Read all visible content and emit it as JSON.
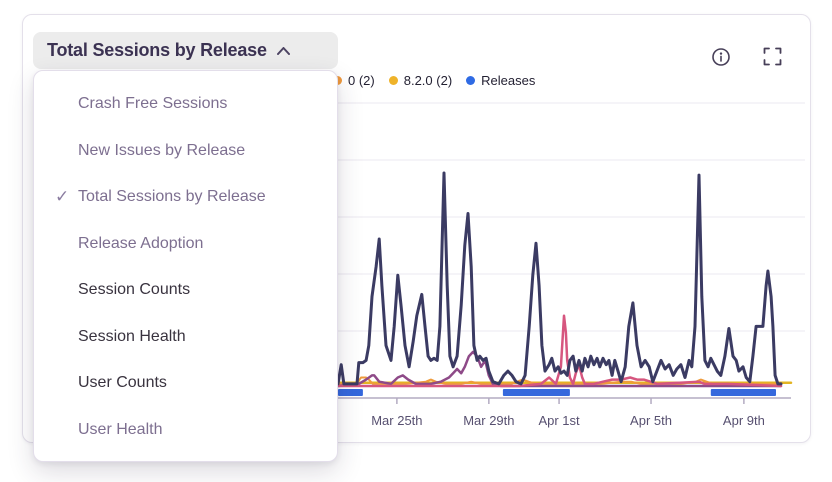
{
  "header": {
    "title": "Total Sessions by Release",
    "chevron_icon": "chevron-up",
    "info_icon": "info-circle",
    "expand_icon": "fullscreen-expand"
  },
  "dropdown": {
    "checkmark": "✓",
    "items": [
      {
        "label": "Crash Free Sessions",
        "selected": false,
        "muted": true
      },
      {
        "label": "New Issues by Release",
        "selected": false,
        "muted": true
      },
      {
        "label": "Total Sessions by Release",
        "selected": true,
        "muted": true
      },
      {
        "label": "Release Adoption",
        "selected": false,
        "muted": true
      },
      {
        "label": "Session Counts",
        "selected": false,
        "muted": false
      },
      {
        "label": "Session Health",
        "selected": false,
        "muted": false
      },
      {
        "label": "User Counts",
        "selected": false,
        "muted": false
      },
      {
        "label": "User Health",
        "selected": false,
        "muted": true
      }
    ]
  },
  "legend": {
    "items": [
      {
        "label": "0 (2)",
        "color": "#f09a3c",
        "note": "left part hidden behind open dropdown"
      },
      {
        "label": "8.2.0 (2)",
        "color": "#efb32a"
      },
      {
        "label": "Releases",
        "color": "#2f6be4"
      }
    ]
  },
  "colors": {
    "card_border": "#e4e0ea",
    "header_pill_bg": "#ececec",
    "header_text": "#3b3252",
    "axis_line": "#b3abc2",
    "axis_label": "#575070",
    "gridline": "#f2f0f5",
    "release_bar_blue": "#3568dd"
  },
  "chart_data": {
    "type": "line",
    "title": "Total Sessions by Release",
    "grid": "horizontal",
    "legend_position": "top",
    "x_axis": {
      "tick_labels": [
        "Mar 25th",
        "Mar 29th",
        "Apr 1st",
        "Apr 5th",
        "Apr 9th"
      ],
      "tick_positions": [
        0.13,
        0.333,
        0.488,
        0.691,
        0.896
      ]
    },
    "y_axis": {
      "labels_visible": false,
      "note": "y tick labels hidden behind open dropdown; values are relative 0-100 of tallest visible peak"
    },
    "release_markers": {
      "legend_label": "Releases",
      "color": "#3568dd",
      "x_ranges": [
        [
          0.0,
          0.055
        ],
        [
          0.364,
          0.512
        ],
        [
          0.823,
          0.967
        ]
      ]
    },
    "series": [
      {
        "name": "gold-flat-series",
        "color": "#e3b422",
        "width": 2.5,
        "points": [
          [
            0.0,
            1.5
          ],
          [
            1.0,
            1.5
          ]
        ]
      },
      {
        "name": "orange-series",
        "color": "#ef9b3c",
        "width": 2,
        "points": [
          [
            0.0,
            1
          ],
          [
            0.04,
            1
          ],
          [
            0.051,
            4
          ],
          [
            0.057,
            4
          ],
          [
            0.062,
            4
          ],
          [
            0.068,
            3
          ],
          [
            0.077,
            1
          ],
          [
            0.139,
            1
          ],
          [
            0.15,
            1
          ],
          [
            0.194,
            2
          ],
          [
            0.205,
            3
          ],
          [
            0.216,
            2
          ],
          [
            0.238,
            1
          ],
          [
            0.272,
            1
          ],
          [
            0.294,
            2
          ],
          [
            0.316,
            1
          ],
          [
            0.338,
            1
          ],
          [
            0.382,
            1
          ],
          [
            0.395,
            2
          ],
          [
            0.408,
            3
          ],
          [
            0.421,
            2
          ],
          [
            0.437,
            1
          ],
          [
            0.492,
            1
          ],
          [
            0.536,
            1
          ],
          [
            0.58,
            1
          ],
          [
            0.625,
            2
          ],
          [
            0.647,
            2
          ],
          [
            0.669,
            1
          ],
          [
            0.713,
            1
          ],
          [
            0.757,
            1
          ],
          [
            0.79,
            2
          ],
          [
            0.801,
            3
          ],
          [
            0.814,
            2
          ],
          [
            0.828,
            1
          ],
          [
            0.872,
            1
          ],
          [
            0.916,
            1
          ],
          [
            0.938,
            1
          ],
          [
            0.967,
            1
          ],
          [
            0.978,
            1
          ]
        ]
      },
      {
        "name": "purple-series",
        "color": "#8e4a88",
        "width": 2.5,
        "points": [
          [
            0.0,
            0
          ],
          [
            0.046,
            1
          ],
          [
            0.062,
            3
          ],
          [
            0.075,
            5
          ],
          [
            0.08,
            5
          ],
          [
            0.091,
            2
          ],
          [
            0.117,
            1
          ],
          [
            0.132,
            4
          ],
          [
            0.143,
            5
          ],
          [
            0.155,
            3
          ],
          [
            0.172,
            1
          ],
          [
            0.205,
            1
          ],
          [
            0.227,
            2
          ],
          [
            0.245,
            4
          ],
          [
            0.254,
            6
          ],
          [
            0.263,
            8
          ],
          [
            0.272,
            6
          ],
          [
            0.28,
            9
          ],
          [
            0.289,
            14
          ],
          [
            0.298,
            16
          ],
          [
            0.307,
            14
          ],
          [
            0.316,
            9
          ],
          [
            0.325,
            12
          ],
          [
            0.333,
            5
          ],
          [
            0.342,
            1
          ],
          [
            0.36,
            0
          ],
          [
            0.978,
            0
          ]
        ]
      },
      {
        "name": "pink-series",
        "color": "#d6567f",
        "width": 2.5,
        "points": [
          [
            0.0,
            0
          ],
          [
            0.4,
            0
          ],
          [
            0.448,
            1
          ],
          [
            0.466,
            4
          ],
          [
            0.481,
            1
          ],
          [
            0.492,
            9
          ],
          [
            0.499,
            33
          ],
          [
            0.503,
            25
          ],
          [
            0.506,
            12
          ],
          [
            0.512,
            4
          ],
          [
            0.519,
            1
          ],
          [
            0.525,
            6
          ],
          [
            0.532,
            10
          ],
          [
            0.539,
            4
          ],
          [
            0.545,
            1
          ],
          [
            0.565,
            1
          ],
          [
            0.585,
            2
          ],
          [
            0.605,
            3
          ],
          [
            0.625,
            3
          ],
          [
            0.645,
            4
          ],
          [
            0.66,
            3
          ],
          [
            0.675,
            3
          ],
          [
            0.69,
            2
          ],
          [
            0.705,
            1
          ],
          [
            0.797,
            2
          ],
          [
            0.81,
            1
          ],
          [
            0.86,
            1
          ],
          [
            0.978,
            0
          ]
        ]
      },
      {
        "name": "navy-series",
        "color": "#3b3b63",
        "width": 3,
        "points": [
          [
            0.0,
            1
          ],
          [
            0.007,
            10
          ],
          [
            0.013,
            1
          ],
          [
            0.042,
            1
          ],
          [
            0.046,
            11
          ],
          [
            0.055,
            11
          ],
          [
            0.062,
            12
          ],
          [
            0.068,
            19
          ],
          [
            0.075,
            42
          ],
          [
            0.084,
            56
          ],
          [
            0.091,
            69
          ],
          [
            0.097,
            47
          ],
          [
            0.106,
            19
          ],
          [
            0.117,
            12
          ],
          [
            0.124,
            28
          ],
          [
            0.132,
            52
          ],
          [
            0.139,
            38
          ],
          [
            0.148,
            19
          ],
          [
            0.157,
            9
          ],
          [
            0.166,
            21
          ],
          [
            0.174,
            33
          ],
          [
            0.185,
            43
          ],
          [
            0.192,
            28
          ],
          [
            0.199,
            14
          ],
          [
            0.205,
            12
          ],
          [
            0.212,
            13
          ],
          [
            0.219,
            12
          ],
          [
            0.225,
            28
          ],
          [
            0.234,
            100
          ],
          [
            0.241,
            47
          ],
          [
            0.247,
            14
          ],
          [
            0.254,
            9
          ],
          [
            0.263,
            14
          ],
          [
            0.272,
            38
          ],
          [
            0.28,
            66
          ],
          [
            0.287,
            81
          ],
          [
            0.294,
            56
          ],
          [
            0.3,
            19
          ],
          [
            0.307,
            12
          ],
          [
            0.313,
            14
          ],
          [
            0.32,
            12
          ],
          [
            0.327,
            13
          ],
          [
            0.333,
            7
          ],
          [
            0.342,
            2
          ],
          [
            0.355,
            1
          ],
          [
            0.366,
            5
          ],
          [
            0.375,
            7
          ],
          [
            0.384,
            5
          ],
          [
            0.393,
            2
          ],
          [
            0.404,
            1
          ],
          [
            0.413,
            5
          ],
          [
            0.422,
            28
          ],
          [
            0.43,
            52
          ],
          [
            0.437,
            67
          ],
          [
            0.444,
            47
          ],
          [
            0.45,
            19
          ],
          [
            0.457,
            7
          ],
          [
            0.466,
            10
          ],
          [
            0.472,
            13
          ],
          [
            0.479,
            7
          ],
          [
            0.486,
            9
          ],
          [
            0.492,
            6
          ],
          [
            0.499,
            7
          ],
          [
            0.506,
            5
          ],
          [
            0.512,
            12
          ],
          [
            0.519,
            14
          ],
          [
            0.525,
            7
          ],
          [
            0.532,
            12
          ],
          [
            0.539,
            7
          ],
          [
            0.545,
            13
          ],
          [
            0.552,
            9
          ],
          [
            0.558,
            14
          ],
          [
            0.565,
            10
          ],
          [
            0.572,
            13
          ],
          [
            0.578,
            9
          ],
          [
            0.585,
            13
          ],
          [
            0.592,
            10
          ],
          [
            0.598,
            12
          ],
          [
            0.605,
            5
          ],
          [
            0.611,
            12
          ],
          [
            0.618,
            7
          ],
          [
            0.625,
            2
          ],
          [
            0.634,
            9
          ],
          [
            0.642,
            28
          ],
          [
            0.651,
            39
          ],
          [
            0.66,
            19
          ],
          [
            0.669,
            9
          ],
          [
            0.678,
            12
          ],
          [
            0.687,
            9
          ],
          [
            0.695,
            2
          ],
          [
            0.704,
            7
          ],
          [
            0.713,
            12
          ],
          [
            0.722,
            8
          ],
          [
            0.731,
            10
          ],
          [
            0.74,
            5
          ],
          [
            0.748,
            8
          ],
          [
            0.757,
            10
          ],
          [
            0.766,
            4
          ],
          [
            0.775,
            12
          ],
          [
            0.781,
            9
          ],
          [
            0.788,
            28
          ],
          [
            0.797,
            99
          ],
          [
            0.803,
            42
          ],
          [
            0.81,
            12
          ],
          [
            0.817,
            9
          ],
          [
            0.823,
            13
          ],
          [
            0.83,
            10
          ],
          [
            0.837,
            7
          ],
          [
            0.845,
            5
          ],
          [
            0.854,
            14
          ],
          [
            0.863,
            27
          ],
          [
            0.872,
            14
          ],
          [
            0.879,
            12
          ],
          [
            0.885,
            7
          ],
          [
            0.894,
            9
          ],
          [
            0.901,
            4
          ],
          [
            0.909,
            2
          ],
          [
            0.916,
            14
          ],
          [
            0.923,
            28
          ],
          [
            0.938,
            28
          ],
          [
            0.945,
            47
          ],
          [
            0.949,
            54
          ],
          [
            0.956,
            42
          ],
          [
            0.96,
            28
          ],
          [
            0.965,
            5
          ],
          [
            0.971,
            1
          ],
          [
            0.978,
            1
          ]
        ]
      }
    ]
  }
}
